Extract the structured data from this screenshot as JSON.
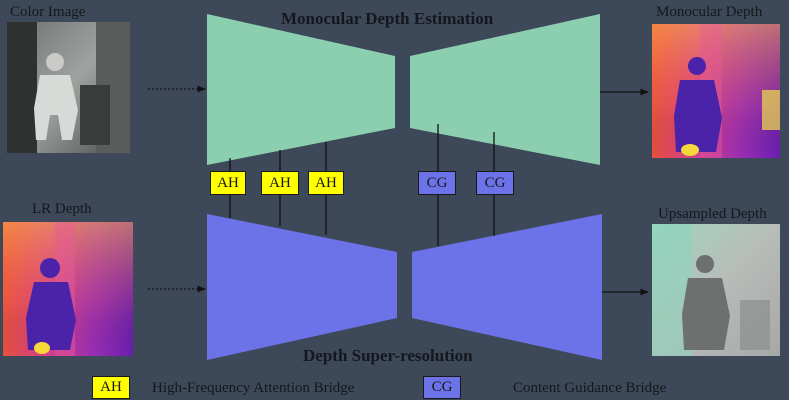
{
  "inputs": {
    "color_image_label": "Color Image",
    "lr_depth_label": "LR Depth"
  },
  "outputs": {
    "monocular_depth_label": "Monocular Depth",
    "upsampled_depth_label": "Upsampled Depth"
  },
  "branches": {
    "top_title": "Monocular Depth Estimation",
    "bottom_title": "Depth Super-resolution"
  },
  "bridges": {
    "ah": [
      "AH",
      "AH",
      "AH"
    ],
    "cg": [
      "CG",
      "CG"
    ]
  },
  "legend": {
    "ah_badge": "AH",
    "ah_text": "High-Frequency Attention Bridge",
    "cg_badge": "CG",
    "cg_text": "Content Guidance Bridge"
  },
  "colors": {
    "background": "#3d4859",
    "encoder_top": "#8ccfb0",
    "encoder_bottom": "#6c73e8",
    "ah_fill": "#ffff00",
    "cg_fill": "#6c73e8"
  }
}
